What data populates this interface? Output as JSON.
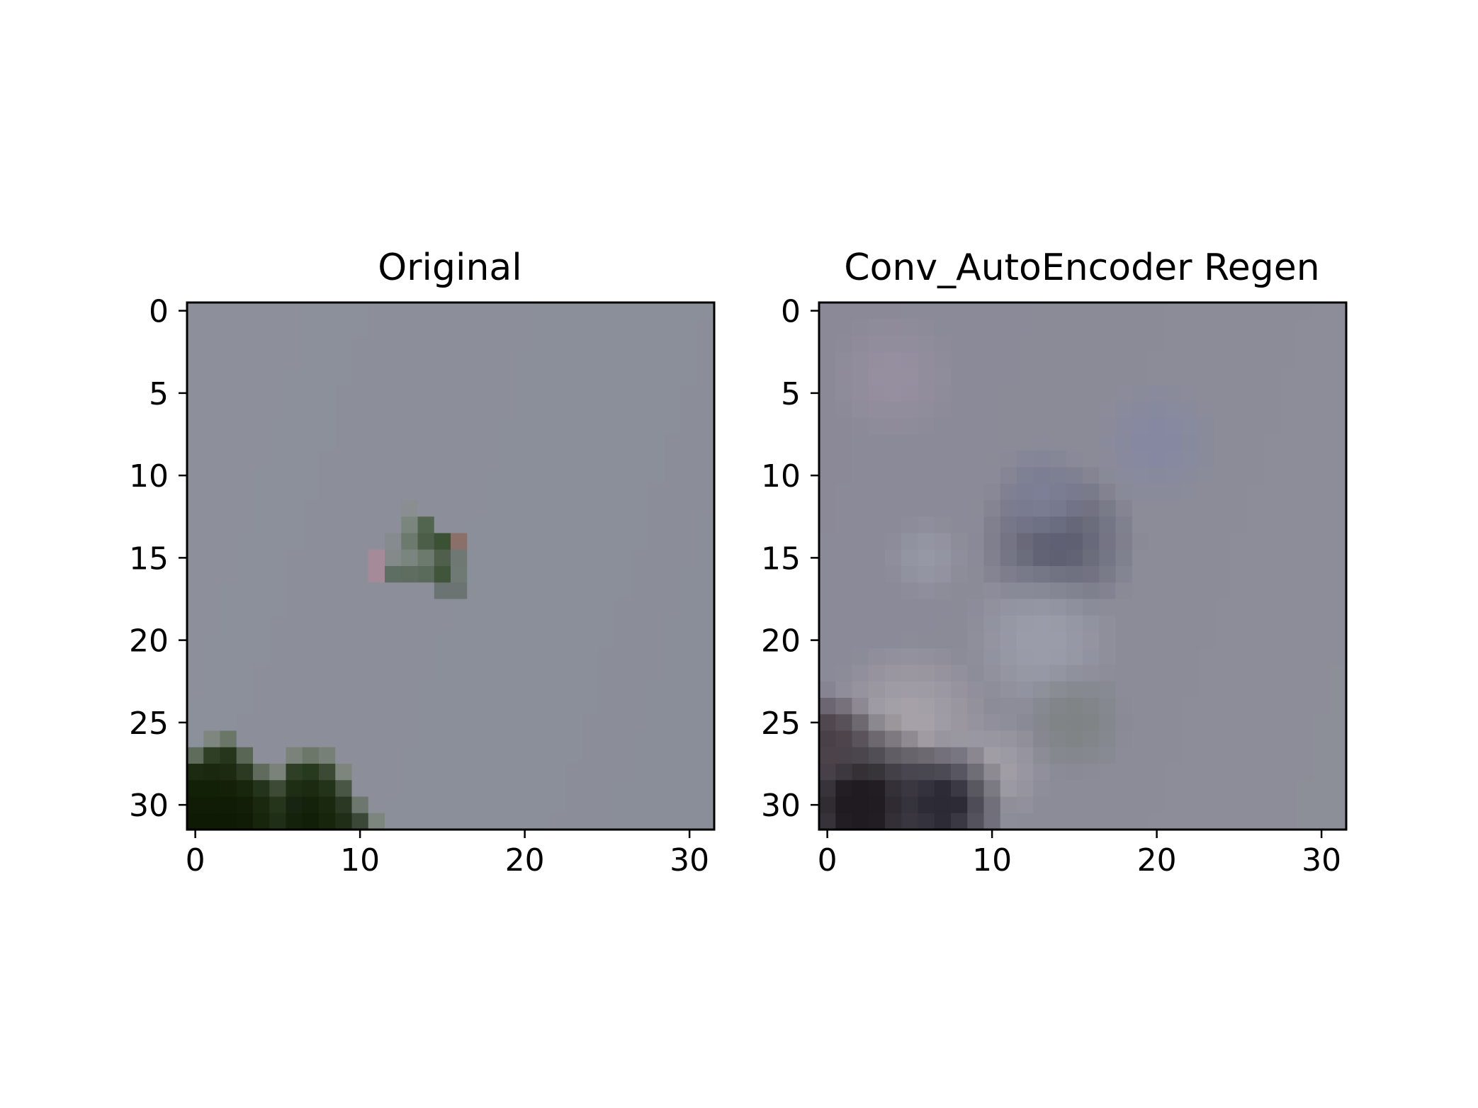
{
  "chart_data": [
    {
      "type": "heatmap",
      "title": "Original",
      "x_ticks": [
        0,
        10,
        20,
        30
      ],
      "y_ticks": [
        0,
        5,
        10,
        15,
        20,
        25,
        30
      ],
      "xlim": [
        -0.5,
        31.5
      ],
      "ylim": [
        31.5,
        -0.5
      ],
      "image_size": [
        32,
        32
      ],
      "background_color": "#8c8f9a",
      "regions": [
        {
          "kind": "gradient",
          "rows": [
            0,
            31
          ],
          "cols": [
            0,
            31
          ],
          "colors": [
            "#8d909b",
            "#8a8e98"
          ]
        },
        {
          "kind": "patch",
          "row": 12,
          "col": 13,
          "color": "#8a8e90"
        },
        {
          "kind": "patch",
          "row": 13,
          "col": 13,
          "color": "#7a857e"
        },
        {
          "kind": "patch",
          "row": 13,
          "col": 14,
          "color": "#51654f"
        },
        {
          "kind": "patch",
          "row": 14,
          "col": 12,
          "color": "#858b8f"
        },
        {
          "kind": "patch",
          "row": 14,
          "col": 13,
          "color": "#6c7a6e"
        },
        {
          "kind": "patch",
          "row": 14,
          "col": 14,
          "color": "#4d5e48"
        },
        {
          "kind": "patch",
          "row": 14,
          "col": 15,
          "color": "#3b5133"
        },
        {
          "kind": "patch",
          "row": 14,
          "col": 16,
          "color": "#8b6f69"
        },
        {
          "kind": "patch",
          "row": 15,
          "col": 11,
          "color": "#a58a9a"
        },
        {
          "kind": "patch",
          "row": 15,
          "col": 12,
          "color": "#848a8a"
        },
        {
          "kind": "patch",
          "row": 15,
          "col": 13,
          "color": "#7b857f"
        },
        {
          "kind": "patch",
          "row": 15,
          "col": 14,
          "color": "#6c7a6e"
        },
        {
          "kind": "patch",
          "row": 15,
          "col": 15,
          "color": "#4f5f4b"
        },
        {
          "kind": "patch",
          "row": 15,
          "col": 16,
          "color": "#6f7873"
        },
        {
          "kind": "patch",
          "row": 16,
          "col": 11,
          "color": "#a58a9a"
        },
        {
          "kind": "patch",
          "row": 16,
          "col": 12,
          "color": "#5f6e63"
        },
        {
          "kind": "patch",
          "row": 16,
          "col": 13,
          "color": "#5e6d60"
        },
        {
          "kind": "patch",
          "row": 16,
          "col": 14,
          "color": "#5b6b5b"
        },
        {
          "kind": "patch",
          "row": 16,
          "col": 15,
          "color": "#41553a"
        },
        {
          "kind": "patch",
          "row": 16,
          "col": 16,
          "color": "#707a75"
        },
        {
          "kind": "patch",
          "row": 17,
          "col": 15,
          "color": "#6c7473"
        },
        {
          "kind": "patch",
          "row": 17,
          "col": 16,
          "color": "#6c7473"
        },
        {
          "kind": "patch",
          "row": 26,
          "col": 1,
          "color": "#7f8680"
        },
        {
          "kind": "patch",
          "row": 26,
          "col": 2,
          "color": "#6b7668"
        },
        {
          "kind": "patch",
          "row": 27,
          "col": 0,
          "color": "#5f6c5b"
        },
        {
          "kind": "patch",
          "row": 27,
          "col": 1,
          "color": "#2f3f25"
        },
        {
          "kind": "patch",
          "row": 27,
          "col": 2,
          "color": "#26361c"
        },
        {
          "kind": "patch",
          "row": 27,
          "col": 3,
          "color": "#5a6655"
        },
        {
          "kind": "patch",
          "row": 27,
          "col": 6,
          "color": "#7a8279"
        },
        {
          "kind": "patch",
          "row": 27,
          "col": 7,
          "color": "#6c7669"
        },
        {
          "kind": "patch",
          "row": 27,
          "col": 8,
          "color": "#778077"
        },
        {
          "kind": "patch",
          "row": 28,
          "col": 0,
          "color": "#1d2a12"
        },
        {
          "kind": "patch",
          "row": 28,
          "col": 1,
          "color": "#1a280f"
        },
        {
          "kind": "patch",
          "row": 28,
          "col": 2,
          "color": "#1c2a12"
        },
        {
          "kind": "patch",
          "row": 28,
          "col": 3,
          "color": "#2c3a24"
        },
        {
          "kind": "patch",
          "row": 28,
          "col": 4,
          "color": "#606b5e"
        },
        {
          "kind": "patch",
          "row": 28,
          "col": 5,
          "color": "#7a8279"
        },
        {
          "kind": "patch",
          "row": 28,
          "col": 6,
          "color": "#2e3f25"
        },
        {
          "kind": "patch",
          "row": 28,
          "col": 7,
          "color": "#283a1e"
        },
        {
          "kind": "patch",
          "row": 28,
          "col": 8,
          "color": "#3c4a35"
        },
        {
          "kind": "patch",
          "row": 28,
          "col": 9,
          "color": "#7d857d"
        },
        {
          "kind": "patch",
          "row": 29,
          "col": 0,
          "color": "#132008"
        },
        {
          "kind": "patch",
          "row": 29,
          "col": 1,
          "color": "#132008"
        },
        {
          "kind": "patch",
          "row": 29,
          "col": 2,
          "color": "#142108"
        },
        {
          "kind": "patch",
          "row": 29,
          "col": 3,
          "color": "#18260d"
        },
        {
          "kind": "patch",
          "row": 29,
          "col": 4,
          "color": "#24331b"
        },
        {
          "kind": "patch",
          "row": 29,
          "col": 5,
          "color": "#3d4b36"
        },
        {
          "kind": "patch",
          "row": 29,
          "col": 6,
          "color": "#1e2e14"
        },
        {
          "kind": "patch",
          "row": 29,
          "col": 7,
          "color": "#1b2a10"
        },
        {
          "kind": "patch",
          "row": 29,
          "col": 8,
          "color": "#23331a"
        },
        {
          "kind": "patch",
          "row": 29,
          "col": 9,
          "color": "#4a5645"
        },
        {
          "kind": "patch",
          "row": 30,
          "col": 0,
          "color": "#101c06"
        },
        {
          "kind": "patch",
          "row": 30,
          "col": 1,
          "color": "#101c06"
        },
        {
          "kind": "patch",
          "row": 30,
          "col": 2,
          "color": "#101c06"
        },
        {
          "kind": "patch",
          "row": 30,
          "col": 3,
          "color": "#121e07"
        },
        {
          "kind": "patch",
          "row": 30,
          "col": 4,
          "color": "#1a2810"
        },
        {
          "kind": "patch",
          "row": 30,
          "col": 5,
          "color": "#25351b"
        },
        {
          "kind": "patch",
          "row": 30,
          "col": 6,
          "color": "#162410"
        },
        {
          "kind": "patch",
          "row": 30,
          "col": 7,
          "color": "#14220b"
        },
        {
          "kind": "patch",
          "row": 30,
          "col": 8,
          "color": "#1a2810"
        },
        {
          "kind": "patch",
          "row": 30,
          "col": 9,
          "color": "#2b3924"
        },
        {
          "kind": "patch",
          "row": 30,
          "col": 10,
          "color": "#6e776e"
        },
        {
          "kind": "patch",
          "row": 31,
          "col": 0,
          "color": "#0f1a05"
        },
        {
          "kind": "patch",
          "row": 31,
          "col": 1,
          "color": "#0f1a05"
        },
        {
          "kind": "patch",
          "row": 31,
          "col": 2,
          "color": "#0f1a05"
        },
        {
          "kind": "patch",
          "row": 31,
          "col": 3,
          "color": "#111c06"
        },
        {
          "kind": "patch",
          "row": 31,
          "col": 4,
          "color": "#17250d"
        },
        {
          "kind": "patch",
          "row": 31,
          "col": 5,
          "color": "#1f2e16"
        },
        {
          "kind": "patch",
          "row": 31,
          "col": 6,
          "color": "#14220b"
        },
        {
          "kind": "patch",
          "row": 31,
          "col": 7,
          "color": "#121f08"
        },
        {
          "kind": "patch",
          "row": 31,
          "col": 8,
          "color": "#17250d"
        },
        {
          "kind": "patch",
          "row": 31,
          "col": 9,
          "color": "#202e18"
        },
        {
          "kind": "patch",
          "row": 31,
          "col": 10,
          "color": "#3c4837"
        },
        {
          "kind": "patch",
          "row": 31,
          "col": 11,
          "color": "#7d857f"
        }
      ]
    },
    {
      "type": "heatmap",
      "title": "Conv_AutoEncoder Regen",
      "x_ticks": [
        0,
        10,
        20,
        30
      ],
      "y_ticks": [
        0,
        5,
        10,
        15,
        20,
        25,
        30
      ],
      "xlim": [
        -0.5,
        31.5
      ],
      "ylim": [
        31.5,
        -0.5
      ],
      "image_size": [
        32,
        32
      ],
      "background_color": "#8a8b98",
      "regions": [
        {
          "kind": "gradient",
          "rows": [
            0,
            31
          ],
          "cols": [
            0,
            31
          ],
          "colors": [
            "#8b8998",
            "#8c8e98"
          ]
        },
        {
          "kind": "blob",
          "row": 14,
          "col": 14,
          "radius": 3.2,
          "color": "#5f6072"
        },
        {
          "kind": "blob",
          "row": 11,
          "col": 13,
          "radius": 2.0,
          "color": "#7c7f95"
        },
        {
          "kind": "blob",
          "row": 20,
          "col": 13,
          "radius": 3.0,
          "color": "#9a9da9"
        },
        {
          "kind": "blob",
          "row": 25,
          "col": 15,
          "radius": 2.2,
          "color": "#7f8386"
        },
        {
          "kind": "blob",
          "row": 25,
          "col": 5,
          "radius": 3.2,
          "color": "#a6a1a8"
        },
        {
          "kind": "blob",
          "row": 28,
          "col": 10,
          "radius": 2.2,
          "color": "#a19ea6"
        },
        {
          "kind": "blob",
          "row": 30,
          "col": 2,
          "radius": 3.6,
          "color": "#1f1b20"
        },
        {
          "kind": "blob",
          "row": 30,
          "col": 7,
          "radius": 2.6,
          "color": "#2c2a34"
        },
        {
          "kind": "blob",
          "row": 26,
          "col": 0,
          "radius": 2.0,
          "color": "#4a4048"
        },
        {
          "kind": "blob",
          "row": 4,
          "col": 4,
          "radius": 2.5,
          "color": "#968fa0"
        },
        {
          "kind": "blob",
          "row": 8,
          "col": 20,
          "radius": 2.5,
          "color": "#8588a0"
        },
        {
          "kind": "blob",
          "row": 15,
          "col": 6,
          "radius": 1.6,
          "color": "#9698a6"
        }
      ]
    }
  ]
}
